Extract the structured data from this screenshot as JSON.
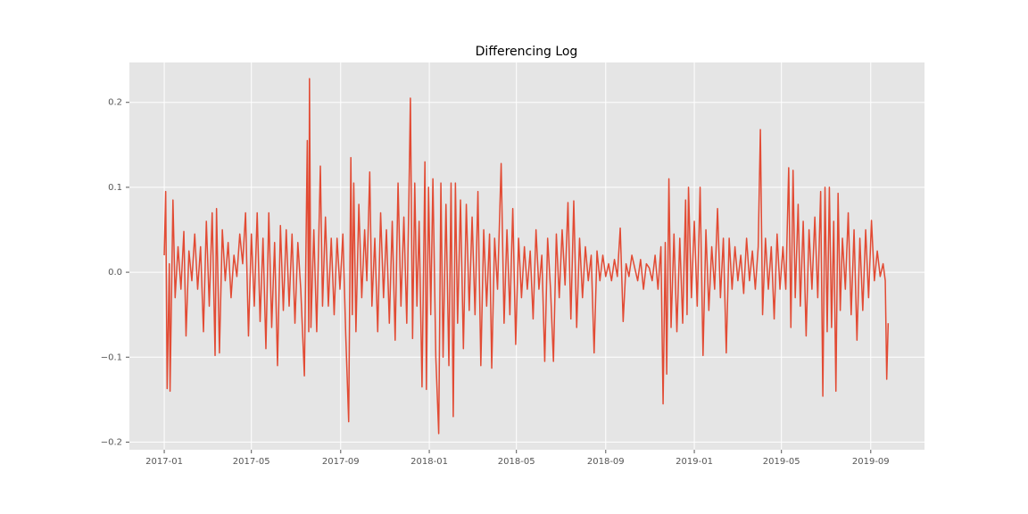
{
  "chart_data": {
    "type": "line",
    "title": "Differencing Log",
    "color": "#e24a33",
    "grid": true,
    "xlim": [
      -48,
      1047
    ],
    "xticks": [
      {
        "value": 0,
        "label": "2017-01"
      },
      {
        "value": 120,
        "label": "2017-05"
      },
      {
        "value": 243,
        "label": "2017-09"
      },
      {
        "value": 365,
        "label": "2018-01"
      },
      {
        "value": 485,
        "label": "2018-05"
      },
      {
        "value": 608,
        "label": "2018-09"
      },
      {
        "value": 730,
        "label": "2019-01"
      },
      {
        "value": 850,
        "label": "2019-05"
      },
      {
        "value": 973,
        "label": "2019-09"
      }
    ],
    "ylim": [
      -0.209,
      0.247
    ],
    "yticks": [
      {
        "value": -0.2,
        "label": "−0.2"
      },
      {
        "value": -0.1,
        "label": "−0.1"
      },
      {
        "value": 0,
        "label": "0.0"
      },
      0.1,
      0.2
    ],
    "x": [
      0,
      2,
      4,
      7,
      8,
      12,
      15,
      19,
      23,
      27,
      30,
      34,
      38,
      42,
      46,
      50,
      54,
      58,
      62,
      66,
      70,
      72,
      76,
      80,
      84,
      88,
      92,
      96,
      100,
      104,
      108,
      112,
      116,
      120,
      124,
      128,
      132,
      136,
      140,
      144,
      148,
      152,
      156,
      160,
      164,
      168,
      172,
      176,
      180,
      184,
      188,
      193,
      197,
      199,
      200,
      202,
      206,
      210,
      215,
      218,
      222,
      226,
      230,
      234,
      238,
      242,
      246,
      250,
      254,
      257,
      259,
      261,
      264,
      268,
      272,
      276,
      279,
      283,
      286,
      290,
      294,
      298,
      302,
      306,
      310,
      314,
      318,
      322,
      326,
      330,
      334,
      337,
      339,
      342,
      345,
      348,
      351,
      355,
      359,
      361,
      364,
      367,
      370,
      374,
      378,
      381,
      384,
      388,
      392,
      395,
      398,
      401,
      404,
      408,
      412,
      416,
      420,
      424,
      428,
      432,
      436,
      440,
      444,
      448,
      451,
      455,
      459,
      464,
      468,
      472,
      476,
      480,
      484,
      488,
      492,
      496,
      500,
      504,
      508,
      512,
      516,
      520,
      524,
      528,
      532,
      536,
      540,
      544,
      548,
      552,
      556,
      560,
      564,
      568,
      572,
      576,
      580,
      584,
      588,
      592,
      596,
      600,
      604,
      608,
      612,
      616,
      620,
      624,
      628,
      632,
      636,
      640,
      644,
      648,
      652,
      656,
      660,
      664,
      668,
      672,
      676,
      680,
      684,
      687,
      690,
      692,
      695,
      698,
      702,
      706,
      710,
      714,
      718,
      720,
      722,
      726,
      730,
      734,
      738,
      742,
      746,
      750,
      754,
      758,
      762,
      766,
      770,
      774,
      778,
      782,
      786,
      790,
      794,
      798,
      802,
      806,
      810,
      814,
      818,
      821,
      824,
      828,
      832,
      836,
      840,
      844,
      848,
      852,
      856,
      860,
      863,
      866,
      869,
      873,
      876,
      880,
      884,
      888,
      892,
      896,
      900,
      904,
      907,
      910,
      913,
      916,
      919,
      922,
      925,
      928,
      931,
      934,
      938,
      942,
      946,
      950,
      954,
      958,
      962,
      966,
      970,
      974,
      978,
      982,
      986,
      990,
      993,
      995,
      997
    ],
    "values": [
      0.02,
      0.095,
      -0.137,
      0.01,
      -0.14,
      0.085,
      -0.03,
      0.03,
      -0.02,
      0.048,
      -0.075,
      0.025,
      -0.01,
      0.045,
      -0.02,
      0.03,
      -0.07,
      0.06,
      -0.04,
      0.07,
      -0.098,
      0.075,
      -0.095,
      0.05,
      -0.01,
      0.035,
      -0.03,
      0.02,
      -0.005,
      0.045,
      0.01,
      0.07,
      -0.075,
      0.045,
      -0.04,
      0.07,
      -0.058,
      0.04,
      -0.09,
      0.07,
      -0.065,
      0.035,
      -0.11,
      0.055,
      -0.045,
      0.05,
      -0.04,
      0.045,
      -0.06,
      0.035,
      -0.02,
      -0.122,
      0.155,
      -0.07,
      0.228,
      -0.065,
      0.05,
      -0.07,
      0.125,
      -0.04,
      0.065,
      -0.04,
      0.04,
      -0.05,
      0.04,
      -0.02,
      0.045,
      -0.075,
      -0.176,
      0.135,
      -0.05,
      0.105,
      -0.07,
      0.08,
      -0.03,
      0.05,
      -0.01,
      0.118,
      -0.04,
      0.04,
      -0.07,
      0.07,
      -0.03,
      0.05,
      -0.06,
      0.06,
      -0.08,
      0.105,
      -0.04,
      0.065,
      -0.06,
      0.09,
      0.205,
      -0.078,
      0.105,
      -0.04,
      0.06,
      -0.135,
      0.13,
      -0.138,
      0.1,
      -0.05,
      0.11,
      -0.1,
      -0.19,
      0.105,
      -0.1,
      0.08,
      -0.11,
      0.105,
      -0.17,
      0.105,
      -0.06,
      0.085,
      -0.09,
      0.08,
      -0.045,
      0.065,
      -0.05,
      0.095,
      -0.11,
      0.05,
      -0.04,
      0.045,
      -0.113,
      0.04,
      -0.02,
      0.128,
      -0.06,
      0.05,
      -0.05,
      0.075,
      -0.085,
      0.04,
      -0.03,
      0.03,
      -0.02,
      0.025,
      -0.055,
      0.05,
      -0.02,
      0.02,
      -0.105,
      0.04,
      -0.02,
      -0.105,
      0.045,
      -0.03,
      0.05,
      -0.015,
      0.082,
      -0.055,
      0.084,
      -0.065,
      0.04,
      -0.03,
      0.03,
      -0.01,
      0.02,
      -0.095,
      0.025,
      -0.01,
      0.02,
      -0.005,
      0.01,
      -0.01,
      0.015,
      -0.005,
      0.052,
      -0.058,
      0.01,
      -0.005,
      0.02,
      0.005,
      -0.01,
      0.015,
      -0.02,
      0.01,
      0.005,
      -0.01,
      0.02,
      -0.02,
      0.03,
      -0.155,
      0.035,
      -0.12,
      0.11,
      -0.065,
      0.045,
      -0.07,
      0.04,
      -0.06,
      0.085,
      -0.05,
      0.1,
      -0.03,
      0.06,
      -0.04,
      0.1,
      -0.098,
      0.05,
      -0.045,
      0.03,
      -0.02,
      0.075,
      -0.03,
      0.04,
      -0.095,
      0.04,
      -0.02,
      0.03,
      -0.01,
      0.02,
      -0.025,
      0.04,
      -0.01,
      0.025,
      -0.02,
      0.03,
      0.168,
      -0.05,
      0.04,
      -0.02,
      0.03,
      -0.055,
      0.045,
      -0.02,
      0.03,
      -0.02,
      0.123,
      -0.065,
      0.12,
      -0.03,
      0.08,
      -0.04,
      0.06,
      -0.075,
      0.05,
      -0.02,
      0.065,
      -0.03,
      0.095,
      -0.146,
      0.1,
      -0.07,
      0.1,
      -0.065,
      0.06,
      -0.14,
      0.093,
      -0.045,
      0.04,
      -0.02,
      0.07,
      -0.05,
      0.05,
      -0.08,
      0.04,
      -0.045,
      0.05,
      -0.03,
      0.061,
      -0.01,
      0.025,
      -0.005,
      0.01,
      -0.01,
      -0.126,
      -0.06
    ]
  }
}
